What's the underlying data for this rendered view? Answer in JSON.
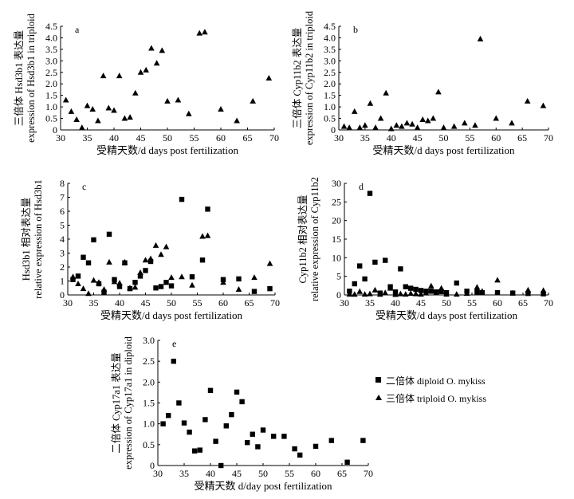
{
  "chart_data": [
    {
      "panel": "a",
      "type": "scatter",
      "ylabel": "三倍体 Hsd3b1 表达量 expression of Hsd3b1 in triploid",
      "xlabel": "受精天数/d days post fertilization",
      "xlim": [
        30,
        70
      ],
      "ylim": [
        0,
        4.5
      ],
      "xticks": [
        30,
        35,
        40,
        45,
        50,
        55,
        60,
        65,
        70
      ],
      "yticks": [
        0,
        0.5,
        1.0,
        1.5,
        2.0,
        2.5,
        3.0,
        3.5,
        4.0,
        4.5
      ],
      "ytick_labels": [
        "0",
        "0.5",
        "1.0",
        "1.5",
        "2.0",
        "2.5",
        "3.0",
        "3.5",
        "4.0",
        "4.5"
      ],
      "series": [
        {
          "marker": "triangle",
          "points": [
            [
              31,
              1.3
            ],
            [
              32,
              0.8
            ],
            [
              33,
              0.45
            ],
            [
              34,
              0.1
            ],
            [
              35,
              1.05
            ],
            [
              36,
              0.9
            ],
            [
              37,
              0.4
            ],
            [
              38,
              2.35
            ],
            [
              39,
              0.95
            ],
            [
              40,
              0.85
            ],
            [
              41,
              2.35
            ],
            [
              42,
              0.5
            ],
            [
              43,
              0.55
            ],
            [
              44,
              1.6
            ],
            [
              45,
              2.5
            ],
            [
              46,
              2.6
            ],
            [
              47,
              3.55
            ],
            [
              48,
              2.9
            ],
            [
              49,
              3.45
            ],
            [
              50,
              1.25
            ],
            [
              52,
              1.3
            ],
            [
              54,
              0.7
            ],
            [
              56,
              4.2
            ],
            [
              57,
              4.25
            ],
            [
              60,
              0.9
            ],
            [
              63,
              0.4
            ],
            [
              66,
              1.25
            ],
            [
              69,
              2.25
            ]
          ]
        }
      ]
    },
    {
      "panel": "b",
      "type": "scatter",
      "ylabel": "三倍体 Cyp11b2 表达量 expression of Cyp11b2 in triploid",
      "xlabel": "受精天数/d days post fertilization",
      "xlim": [
        30,
        70
      ],
      "ylim": [
        0,
        4.5
      ],
      "xticks": [
        30,
        35,
        40,
        45,
        50,
        55,
        60,
        65,
        70
      ],
      "yticks": [
        0,
        0.5,
        1.0,
        1.5,
        2.0,
        2.5,
        3.0,
        3.5,
        4.0,
        4.5
      ],
      "ytick_labels": [
        "0",
        "0.5",
        "1.0",
        "1.5",
        "2.0",
        "2.5",
        "3.0",
        "3.5",
        "4.0",
        "4.5"
      ],
      "series": [
        {
          "marker": "triangle",
          "points": [
            [
              31,
              0.15
            ],
            [
              32,
              0.1
            ],
            [
              33,
              0.8
            ],
            [
              34,
              0.1
            ],
            [
              35,
              0.2
            ],
            [
              36,
              1.15
            ],
            [
              37,
              0.1
            ],
            [
              38,
              0.5
            ],
            [
              39,
              1.6
            ],
            [
              40,
              0.05
            ],
            [
              41,
              0.2
            ],
            [
              42,
              0.15
            ],
            [
              43,
              0.3
            ],
            [
              44,
              0.25
            ],
            [
              45,
              0.1
            ],
            [
              46,
              0.45
            ],
            [
              47,
              0.4
            ],
            [
              48,
              0.5
            ],
            [
              49,
              1.65
            ],
            [
              50,
              0.1
            ],
            [
              52,
              0.15
            ],
            [
              54,
              0.3
            ],
            [
              56,
              0.2
            ],
            [
              57,
              3.95
            ],
            [
              60,
              0.5
            ],
            [
              63,
              0.3
            ],
            [
              66,
              1.25
            ],
            [
              69,
              1.05
            ]
          ]
        }
      ]
    },
    {
      "panel": "c",
      "type": "scatter",
      "ylabel": "Hsd3b1 相对表达量 relative expression of Hsd3b1",
      "xlabel": "受精天数/d days post fertilization",
      "xlim": [
        30,
        70
      ],
      "ylim": [
        0,
        8
      ],
      "xticks": [
        30,
        35,
        40,
        45,
        50,
        55,
        60,
        65,
        70
      ],
      "yticks": [
        0,
        1,
        2,
        3,
        4,
        5,
        6,
        7,
        8
      ],
      "ytick_labels": [
        "0",
        "1",
        "2",
        "3",
        "4",
        "5",
        "6",
        "7",
        "8"
      ],
      "series": [
        {
          "name": "二倍体 diploid O. mykiss",
          "marker": "square",
          "points": [
            [
              31,
              1.1
            ],
            [
              32,
              1.35
            ],
            [
              33,
              2.7
            ],
            [
              34,
              2.3
            ],
            [
              35,
              3.95
            ],
            [
              36,
              0.8
            ],
            [
              37,
              0.2
            ],
            [
              38,
              4.35
            ],
            [
              39,
              1.1
            ],
            [
              40,
              0.6
            ],
            [
              41,
              2.3
            ],
            [
              42,
              0.45
            ],
            [
              43,
              0.9
            ],
            [
              44,
              1.35
            ],
            [
              45,
              1.75
            ],
            [
              46,
              2.4
            ],
            [
              47,
              0.5
            ],
            [
              48,
              0.6
            ],
            [
              49,
              0.9
            ],
            [
              50,
              0.65
            ],
            [
              52,
              6.85
            ],
            [
              54,
              1.3
            ],
            [
              56,
              2.5
            ],
            [
              57,
              6.15
            ],
            [
              60,
              1.1
            ],
            [
              63,
              1.15
            ],
            [
              66,
              0.25
            ],
            [
              69,
              0.45
            ]
          ]
        },
        {
          "name": "三倍体 triploid O. mykiss",
          "marker": "triangle",
          "points": [
            [
              31,
              1.3
            ],
            [
              32,
              0.8
            ],
            [
              33,
              0.45
            ],
            [
              34,
              0.1
            ],
            [
              35,
              1.05
            ],
            [
              36,
              0.9
            ],
            [
              37,
              0.4
            ],
            [
              38,
              2.35
            ],
            [
              39,
              0.95
            ],
            [
              40,
              0.85
            ],
            [
              41,
              2.35
            ],
            [
              42,
              0.5
            ],
            [
              43,
              0.55
            ],
            [
              44,
              1.6
            ],
            [
              45,
              2.5
            ],
            [
              46,
              2.6
            ],
            [
              47,
              3.55
            ],
            [
              48,
              2.9
            ],
            [
              49,
              3.45
            ],
            [
              50,
              1.25
            ],
            [
              52,
              1.3
            ],
            [
              54,
              0.7
            ],
            [
              56,
              4.2
            ],
            [
              57,
              4.25
            ],
            [
              60,
              0.9
            ],
            [
              63,
              0.4
            ],
            [
              66,
              1.25
            ],
            [
              69,
              2.25
            ]
          ]
        }
      ]
    },
    {
      "panel": "d",
      "type": "scatter",
      "ylabel": "Cyp11b2 相对表达量 relative expression of Cyp11b2",
      "xlabel": "受精天数/d days post fertilization",
      "xlim": [
        30,
        70
      ],
      "ylim": [
        0,
        30
      ],
      "xticks": [
        30,
        35,
        40,
        45,
        50,
        55,
        60,
        65,
        70
      ],
      "yticks": [
        0,
        5,
        10,
        15,
        20,
        25,
        30
      ],
      "ytick_labels": [
        "0",
        "5",
        "10",
        "15",
        "20",
        "25",
        "30"
      ],
      "series": [
        {
          "name": "二倍体 diploid O. mykiss",
          "marker": "square",
          "points": [
            [
              31,
              1.0
            ],
            [
              32,
              3.0
            ],
            [
              33,
              7.8
            ],
            [
              34,
              4.3
            ],
            [
              35,
              27.3
            ],
            [
              36,
              8.8
            ],
            [
              37,
              0.5
            ],
            [
              38,
              9.3
            ],
            [
              39,
              2.2
            ],
            [
              40,
              0.8
            ],
            [
              41,
              7.0
            ],
            [
              42,
              2.2
            ],
            [
              43,
              1.8
            ],
            [
              44,
              1.5
            ],
            [
              45,
              1.2
            ],
            [
              46,
              1.0
            ],
            [
              47,
              1.0
            ],
            [
              48,
              0.8
            ],
            [
              49,
              0.9
            ],
            [
              50,
              0.6
            ],
            [
              52,
              3.2
            ],
            [
              54,
              1.0
            ],
            [
              56,
              0.8
            ],
            [
              57,
              0.6
            ],
            [
              60,
              0.6
            ],
            [
              63,
              0.5
            ],
            [
              66,
              0.4
            ],
            [
              69,
              0.3
            ]
          ]
        },
        {
          "name": "三倍体 triploid O. mykiss",
          "marker": "triangle",
          "points": [
            [
              31,
              0.2
            ],
            [
              32,
              0.15
            ],
            [
              33,
              0.9
            ],
            [
              34,
              0.2
            ],
            [
              35,
              0.3
            ],
            [
              36,
              1.3
            ],
            [
              37,
              0.15
            ],
            [
              38,
              0.6
            ],
            [
              39,
              1.8
            ],
            [
              40,
              0.1
            ],
            [
              41,
              0.3
            ],
            [
              42,
              0.2
            ],
            [
              43,
              0.4
            ],
            [
              44,
              0.3
            ],
            [
              45,
              0.2
            ],
            [
              46,
              0.5
            ],
            [
              47,
              2.4
            ],
            [
              48,
              0.6
            ],
            [
              49,
              1.8
            ],
            [
              50,
              0.2
            ],
            [
              52,
              0.2
            ],
            [
              54,
              0.4
            ],
            [
              56,
              2.1
            ],
            [
              57,
              1.0
            ],
            [
              60,
              4.0
            ],
            [
              63,
              0.5
            ],
            [
              66,
              1.3
            ],
            [
              69,
              1.2
            ]
          ]
        }
      ]
    },
    {
      "panel": "e",
      "type": "scatter",
      "ylabel": "二倍体 Cyp17a1 表达量 expression of Cyp17a1 in diploid",
      "xlabel": "受精天数 d/day post fertilization",
      "xlim": [
        30,
        70
      ],
      "ylim": [
        0,
        3.0
      ],
      "xticks": [
        30,
        35,
        40,
        45,
        50,
        55,
        60,
        65,
        70
      ],
      "yticks": [
        0,
        0.5,
        1.0,
        1.5,
        2.0,
        2.5,
        3.0
      ],
      "ytick_labels": [
        "0",
        "0.5",
        "1.0",
        "1.5",
        "2.0",
        "2.5",
        "3.0"
      ],
      "series": [
        {
          "marker": "square",
          "points": [
            [
              31,
              1.0
            ],
            [
              32,
              1.2
            ],
            [
              33,
              2.5
            ],
            [
              34,
              1.5
            ],
            [
              35,
              1.02
            ],
            [
              36,
              0.8
            ],
            [
              37,
              0.35
            ],
            [
              38,
              0.37
            ],
            [
              39,
              1.1
            ],
            [
              40,
              1.8
            ],
            [
              41,
              0.58
            ],
            [
              42,
              0.0
            ],
            [
              43,
              0.95
            ],
            [
              44,
              1.22
            ],
            [
              45,
              1.76
            ],
            [
              46,
              1.53
            ],
            [
              47,
              0.55
            ],
            [
              48,
              0.75
            ],
            [
              49,
              0.45
            ],
            [
              50,
              0.85
            ],
            [
              52,
              0.7
            ],
            [
              54,
              0.7
            ],
            [
              56,
              0.4
            ],
            [
              57,
              0.25
            ],
            [
              60,
              0.46
            ],
            [
              63,
              0.6
            ],
            [
              66,
              0.08
            ],
            [
              69,
              0.6
            ]
          ]
        }
      ]
    }
  ],
  "legend": {
    "items": [
      {
        "marker": "square",
        "label": "二倍体 diploid O. mykiss"
      },
      {
        "marker": "triangle",
        "label": "三倍体 triploid O. mykiss"
      }
    ]
  }
}
